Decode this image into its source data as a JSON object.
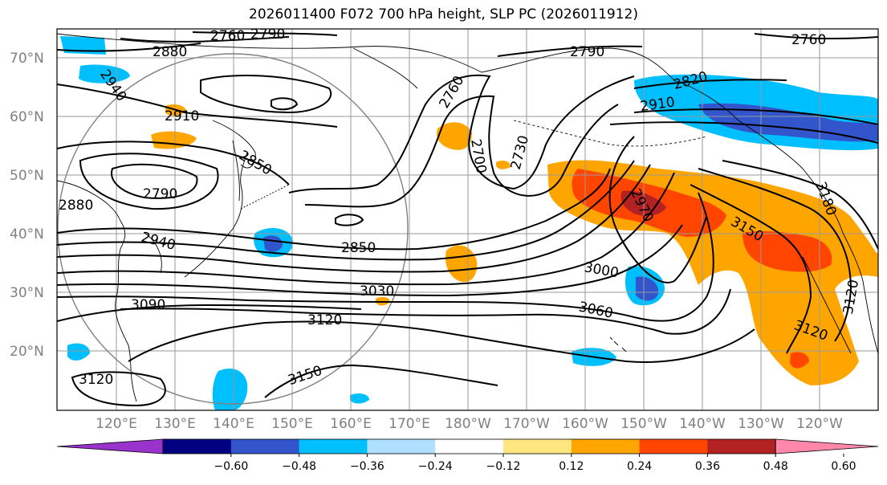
{
  "title": "2026011400 F072 700 hPa height, SLP PC (2026011912)",
  "lat_labels": [
    "70°N",
    "60°N",
    "50°N",
    "40°N",
    "30°N",
    "20°N"
  ],
  "lon_labels": [
    "120°E",
    "130°E",
    "140°E",
    "150°E",
    "160°E",
    "170°E",
    "180°W",
    "170°W",
    "160°W",
    "150°W",
    "140°W",
    "130°W",
    "120°W"
  ],
  "contour_labels": [
    "2760",
    "2790",
    "2880",
    "2940",
    "2910",
    "2850",
    "2790",
    "2880",
    "2940",
    "2850",
    "2760",
    "2700",
    "2730",
    "2790",
    "2820",
    "2910",
    "2970",
    "3000",
    "3030",
    "3060",
    "3090",
    "3120",
    "3150",
    "3150",
    "3120",
    "3120",
    "3180",
    "3120",
    "2760"
  ],
  "colorbar": {
    "ticks": [
      "−0.60",
      "−0.48",
      "−0.36",
      "−0.24",
      "−0.12",
      "0.12",
      "0.24",
      "0.36",
      "0.48",
      "0.60"
    ],
    "colors": [
      "#9933cc",
      "#000080",
      "#3355cc",
      "#00bfff",
      "#b0e0ff",
      "#ffffff",
      "#ffe680",
      "#ffa500",
      "#ff4500",
      "#b22222",
      "#ff88aa"
    ]
  },
  "colors": {
    "neg_strong": "#3355cc",
    "neg": "#00bfff",
    "pos": "#ffa500",
    "pos_strong": "#ff4500",
    "pos_max": "#b22222"
  }
}
